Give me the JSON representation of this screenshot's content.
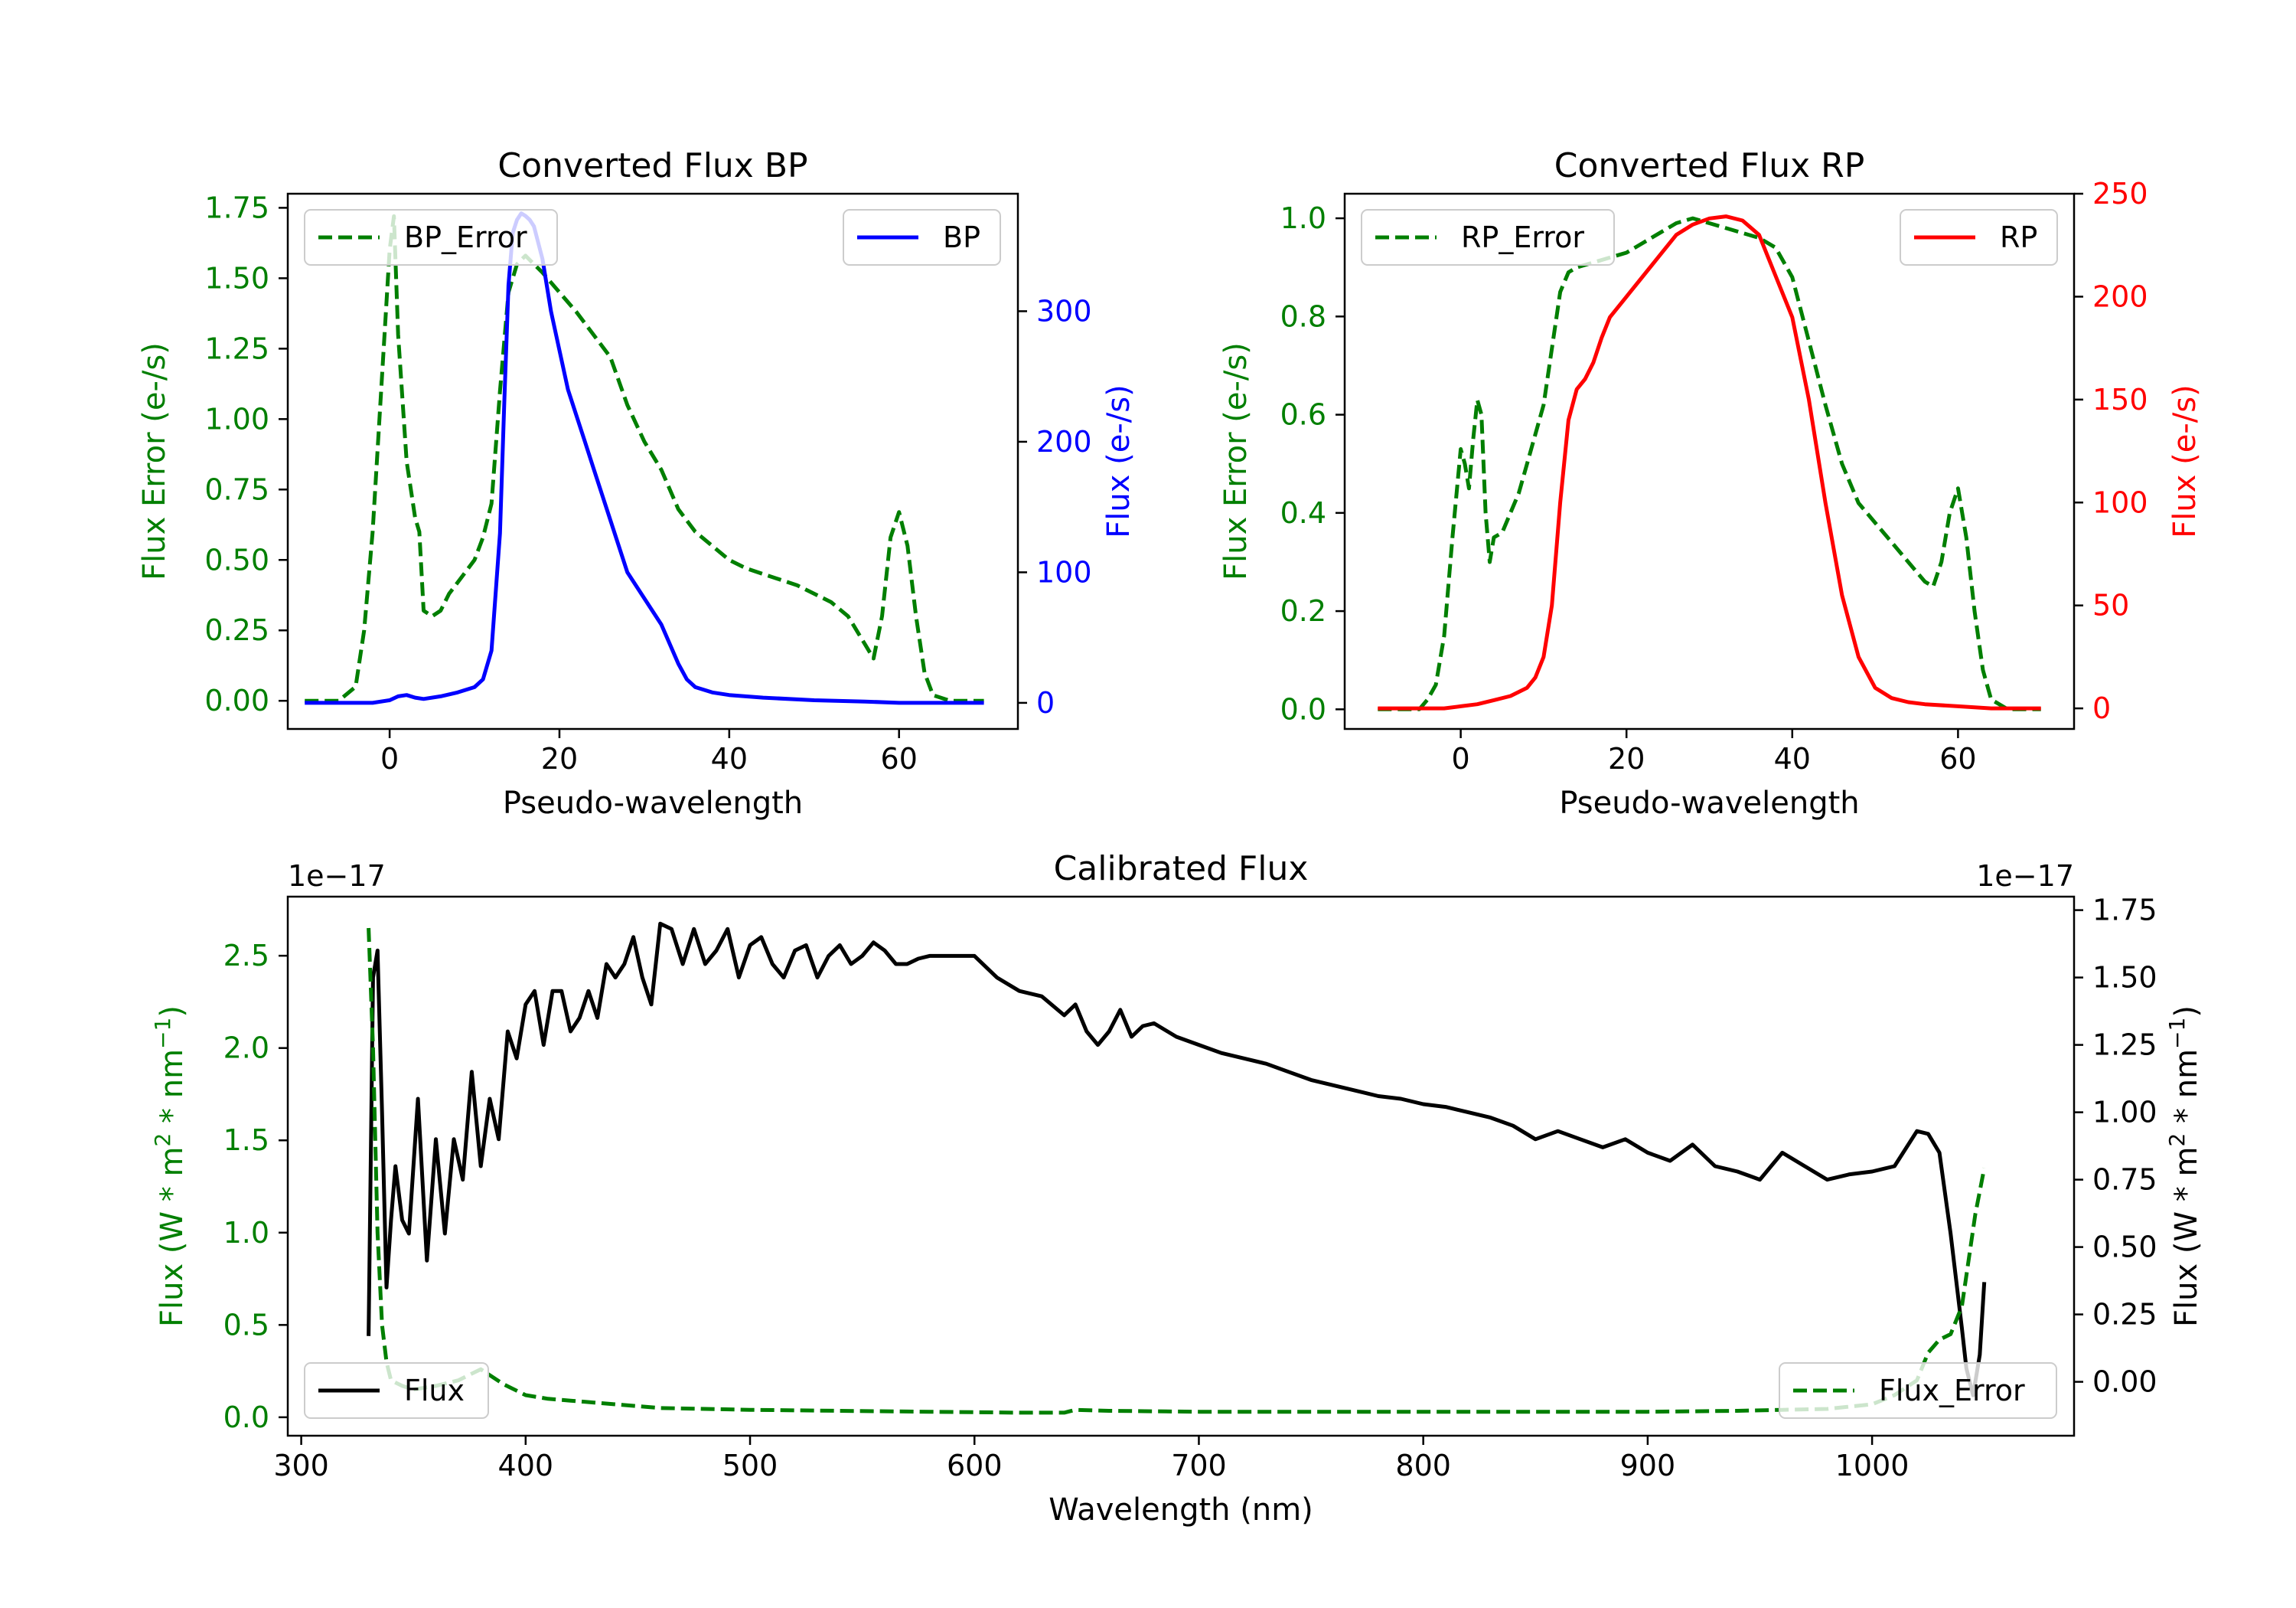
{
  "colors": {
    "error": "#007f00",
    "bp": "#0000ff",
    "rp": "#ff0000",
    "flux": "#000000",
    "axis": "#000000"
  },
  "chart_data": [
    {
      "id": "bp",
      "type": "line",
      "title": "Converted Flux BP",
      "xlabel": "Pseudo-wavelength",
      "ylabel_left": "Flux Error (e-/s)",
      "ylabel_right": "Flux (e-/s)",
      "xlim": [
        -12,
        74
      ],
      "ylim_left": [
        -0.1,
        1.8
      ],
      "ylim_right": [
        -20,
        390
      ],
      "xticks": [
        0,
        20,
        40,
        60
      ],
      "xtick_labels": [
        "0",
        "20",
        "40",
        "60"
      ],
      "yticks_left": [
        0,
        0.25,
        0.5,
        0.75,
        1.0,
        1.25,
        1.5,
        1.75
      ],
      "ytick_labels_left": [
        "0.00",
        "0.25",
        "0.50",
        "0.75",
        "1.00",
        "1.25",
        "1.50",
        "1.75"
      ],
      "yticks_right": [
        0,
        100,
        200,
        300
      ],
      "ytick_labels_right": [
        "0",
        "100",
        "200",
        "300"
      ],
      "legend_left": {
        "label": "BP_Error",
        "placement": "upper-left"
      },
      "legend_right": {
        "label": "BP",
        "placement": "upper-right"
      },
      "series": [
        {
          "name": "BP_Error",
          "axis": "left",
          "style": "dashed",
          "color_key": "error",
          "x": [
            -10,
            -6,
            -4,
            -3,
            -2,
            -1,
            0,
            0.5,
            1,
            2,
            3,
            3.5,
            4,
            5,
            6,
            7,
            8,
            9,
            10,
            11,
            12,
            13,
            14,
            15,
            16,
            17,
            18,
            20,
            22,
            24,
            26,
            28,
            30,
            32,
            34,
            36,
            38,
            40,
            42,
            44,
            46,
            48,
            50,
            52,
            54,
            55,
            56,
            57,
            58,
            59,
            60,
            61,
            62,
            63,
            64,
            66,
            70
          ],
          "y": [
            0.0,
            0.0,
            0.05,
            0.25,
            0.6,
            1.1,
            1.6,
            1.72,
            1.3,
            0.85,
            0.65,
            0.6,
            0.32,
            0.3,
            0.32,
            0.38,
            0.42,
            0.46,
            0.5,
            0.58,
            0.7,
            1.1,
            1.45,
            1.55,
            1.58,
            1.55,
            1.52,
            1.45,
            1.38,
            1.3,
            1.22,
            1.05,
            0.92,
            0.82,
            0.68,
            0.6,
            0.55,
            0.5,
            0.47,
            0.45,
            0.43,
            0.41,
            0.38,
            0.35,
            0.3,
            0.25,
            0.2,
            0.15,
            0.3,
            0.58,
            0.67,
            0.55,
            0.3,
            0.1,
            0.02,
            0.0,
            0.0
          ]
        },
        {
          "name": "BP",
          "axis": "right",
          "style": "solid",
          "color_key": "bp",
          "x": [
            -10,
            -4,
            -2,
            0,
            1,
            2,
            3,
            4,
            6,
            8,
            10,
            11,
            12,
            13,
            13.5,
            14,
            14.5,
            15,
            15.5,
            16,
            16.5,
            17,
            18,
            19,
            20,
            21,
            22,
            23,
            24,
            25,
            26,
            27,
            28,
            30,
            32,
            34,
            35,
            36,
            38,
            40,
            44,
            50,
            56,
            60,
            64,
            70
          ],
          "y": [
            0,
            0,
            0,
            2,
            5,
            6,
            4,
            3,
            5,
            8,
            12,
            18,
            40,
            130,
            230,
            320,
            360,
            370,
            375,
            373,
            370,
            365,
            340,
            300,
            270,
            240,
            220,
            200,
            180,
            160,
            140,
            120,
            100,
            80,
            60,
            30,
            18,
            12,
            8,
            6,
            4,
            2,
            1,
            0,
            0,
            0
          ]
        }
      ]
    },
    {
      "id": "rp",
      "type": "line",
      "title": "Converted Flux RP",
      "xlabel": "Pseudo-wavelength",
      "ylabel_left": "Flux Error (e-/s)",
      "ylabel_right": "Flux (e-/s)",
      "xlim": [
        -14,
        74
      ],
      "ylim_left": [
        -0.04,
        1.05
      ],
      "ylim_right": [
        -10,
        250
      ],
      "xticks": [
        0,
        20,
        40,
        60
      ],
      "xtick_labels": [
        "0",
        "20",
        "40",
        "60"
      ],
      "yticks_left": [
        0,
        0.2,
        0.4,
        0.6,
        0.8,
        1.0
      ],
      "ytick_labels_left": [
        "0.0",
        "0.2",
        "0.4",
        "0.6",
        "0.8",
        "1.0"
      ],
      "yticks_right": [
        0,
        50,
        100,
        150,
        200,
        250
      ],
      "ytick_labels_right": [
        "0",
        "50",
        "100",
        "150",
        "200",
        "250"
      ],
      "legend_left": {
        "label": "RP_Error",
        "placement": "upper-left"
      },
      "legend_right": {
        "label": "RP",
        "placement": "upper-right"
      },
      "series": [
        {
          "name": "RP_Error",
          "axis": "left",
          "style": "dashed",
          "color_key": "error",
          "x": [
            -10,
            -5,
            -4,
            -3,
            -2,
            -1,
            0,
            0.5,
            1,
            1.5,
            2,
            2.5,
            3,
            3.5,
            4,
            5,
            6,
            7,
            8,
            10,
            12,
            13,
            14,
            16,
            18,
            20,
            22,
            24,
            26,
            28,
            30,
            32,
            34,
            36,
            38,
            40,
            42,
            44,
            46,
            48,
            50,
            52,
            54,
            55,
            56,
            57,
            58,
            59,
            60,
            61,
            62,
            63,
            64,
            66,
            70
          ],
          "y": [
            0.0,
            0.0,
            0.02,
            0.05,
            0.15,
            0.35,
            0.53,
            0.5,
            0.45,
            0.55,
            0.63,
            0.6,
            0.4,
            0.3,
            0.35,
            0.36,
            0.4,
            0.44,
            0.5,
            0.62,
            0.85,
            0.89,
            0.9,
            0.91,
            0.92,
            0.93,
            0.95,
            0.97,
            0.99,
            1.0,
            0.99,
            0.98,
            0.97,
            0.96,
            0.94,
            0.88,
            0.75,
            0.62,
            0.5,
            0.42,
            0.38,
            0.34,
            0.3,
            0.28,
            0.26,
            0.25,
            0.3,
            0.4,
            0.45,
            0.35,
            0.2,
            0.08,
            0.02,
            0.0,
            0.0
          ]
        },
        {
          "name": "RP",
          "axis": "right",
          "style": "solid",
          "color_key": "rp",
          "x": [
            -10,
            -2,
            0,
            2,
            4,
            6,
            8,
            9,
            10,
            11,
            12,
            13,
            14,
            15,
            16,
            17,
            18,
            20,
            22,
            24,
            26,
            28,
            30,
            32,
            34,
            36,
            37,
            38,
            40,
            42,
            44,
            46,
            48,
            50,
            52,
            54,
            56,
            60,
            64,
            70
          ],
          "y": [
            0,
            0,
            1,
            2,
            4,
            6,
            10,
            15,
            25,
            50,
            100,
            140,
            155,
            160,
            168,
            180,
            190,
            200,
            210,
            220,
            230,
            235,
            238,
            239,
            237,
            230,
            220,
            210,
            190,
            150,
            100,
            55,
            25,
            10,
            5,
            3,
            2,
            1,
            0,
            0
          ]
        }
      ]
    },
    {
      "id": "calibrated",
      "type": "line",
      "title": "Calibrated Flux",
      "xlabel": "Wavelength (nm)",
      "ylabel_left": "Flux (W * m^2 * nm^-1)",
      "ylabel_right": "Flux (W * m^2 * nm^-1)",
      "offset_left": "1e−17",
      "offset_right": "1e−17",
      "xlim": [
        294,
        1090
      ],
      "ylim_left": [
        -0.1,
        2.82
      ],
      "ylim_right": [
        -0.2,
        1.8
      ],
      "xticks": [
        300,
        400,
        500,
        600,
        700,
        800,
        900,
        1000
      ],
      "xtick_labels": [
        "300",
        "400",
        "500",
        "600",
        "700",
        "800",
        "900",
        "1000"
      ],
      "yticks_left": [
        0,
        0.5,
        1.0,
        1.5,
        2.0,
        2.5
      ],
      "ytick_labels_left": [
        "0.0",
        "0.5",
        "1.0",
        "1.5",
        "2.0",
        "2.5"
      ],
      "yticks_right": [
        0,
        0.25,
        0.5,
        0.75,
        1.0,
        1.25,
        1.5,
        1.75
      ],
      "ytick_labels_right": [
        "0.00",
        "0.25",
        "0.50",
        "0.75",
        "1.00",
        "1.25",
        "1.50",
        "1.75"
      ],
      "legend_left": {
        "label": "Flux",
        "placement": "lower-left"
      },
      "legend_right": {
        "label": "Flux_Error",
        "placement": "lower-right"
      },
      "series": [
        {
          "name": "Flux",
          "axis": "right",
          "style": "solid",
          "color_key": "flux",
          "x": [
            330,
            332,
            334,
            336,
            338,
            340,
            342,
            345,
            348,
            352,
            356,
            360,
            364,
            368,
            372,
            376,
            380,
            384,
            388,
            392,
            396,
            400,
            404,
            408,
            412,
            416,
            420,
            424,
            428,
            432,
            436,
            440,
            444,
            448,
            452,
            456,
            460,
            465,
            470,
            475,
            480,
            485,
            490,
            495,
            500,
            505,
            510,
            515,
            520,
            525,
            530,
            535,
            540,
            545,
            550,
            555,
            560,
            565,
            570,
            575,
            580,
            590,
            600,
            610,
            620,
            630,
            640,
            645,
            650,
            655,
            660,
            665,
            670,
            675,
            680,
            690,
            700,
            710,
            720,
            730,
            740,
            750,
            760,
            770,
            780,
            790,
            800,
            810,
            820,
            830,
            840,
            850,
            860,
            870,
            880,
            890,
            900,
            910,
            920,
            930,
            940,
            950,
            960,
            970,
            980,
            990,
            1000,
            1010,
            1020,
            1025,
            1030,
            1035,
            1040,
            1042,
            1045,
            1048,
            1050
          ],
          "y": [
            0.17,
            1.5,
            1.6,
            1.0,
            0.35,
            0.6,
            0.8,
            0.6,
            0.55,
            1.05,
            0.45,
            0.9,
            0.55,
            0.9,
            0.75,
            1.15,
            0.8,
            1.05,
            0.9,
            1.3,
            1.2,
            1.4,
            1.45,
            1.25,
            1.45,
            1.45,
            1.3,
            1.35,
            1.45,
            1.35,
            1.55,
            1.5,
            1.55,
            1.65,
            1.5,
            1.4,
            1.7,
            1.68,
            1.55,
            1.68,
            1.55,
            1.6,
            1.68,
            1.5,
            1.62,
            1.65,
            1.55,
            1.5,
            1.6,
            1.62,
            1.5,
            1.58,
            1.62,
            1.55,
            1.58,
            1.63,
            1.6,
            1.55,
            1.55,
            1.57,
            1.58,
            1.58,
            1.58,
            1.5,
            1.45,
            1.43,
            1.36,
            1.4,
            1.3,
            1.25,
            1.3,
            1.38,
            1.28,
            1.32,
            1.33,
            1.28,
            1.25,
            1.22,
            1.2,
            1.18,
            1.15,
            1.12,
            1.1,
            1.08,
            1.06,
            1.05,
            1.03,
            1.02,
            1.0,
            0.98,
            0.95,
            0.9,
            0.93,
            0.9,
            0.87,
            0.9,
            0.85,
            0.82,
            0.88,
            0.8,
            0.78,
            0.75,
            0.85,
            0.8,
            0.75,
            0.77,
            0.78,
            0.8,
            0.93,
            0.92,
            0.85,
            0.55,
            0.2,
            0.05,
            -0.05,
            0.1,
            0.37
          ]
        },
        {
          "name": "Flux_Error",
          "axis": "left",
          "style": "dashed",
          "color_key": "error",
          "x": [
            330,
            332,
            334,
            336,
            338,
            340,
            345,
            350,
            360,
            370,
            375,
            380,
            385,
            390,
            400,
            410,
            420,
            440,
            460,
            480,
            500,
            540,
            580,
            620,
            640,
            645,
            660,
            700,
            740,
            780,
            820,
            860,
            900,
            940,
            960,
            980,
            1000,
            1010,
            1020,
            1025,
            1030,
            1035,
            1040,
            1043,
            1046,
            1050
          ],
          "y": [
            2.65,
            2.0,
            1.0,
            0.5,
            0.3,
            0.2,
            0.17,
            0.15,
            0.17,
            0.2,
            0.23,
            0.26,
            0.22,
            0.18,
            0.12,
            0.1,
            0.09,
            0.07,
            0.05,
            0.045,
            0.04,
            0.035,
            0.03,
            0.025,
            0.025,
            0.04,
            0.035,
            0.03,
            0.03,
            0.03,
            0.03,
            0.03,
            0.03,
            0.035,
            0.04,
            0.045,
            0.07,
            0.12,
            0.2,
            0.35,
            0.42,
            0.45,
            0.6,
            0.85,
            1.1,
            1.35
          ]
        }
      ]
    }
  ]
}
